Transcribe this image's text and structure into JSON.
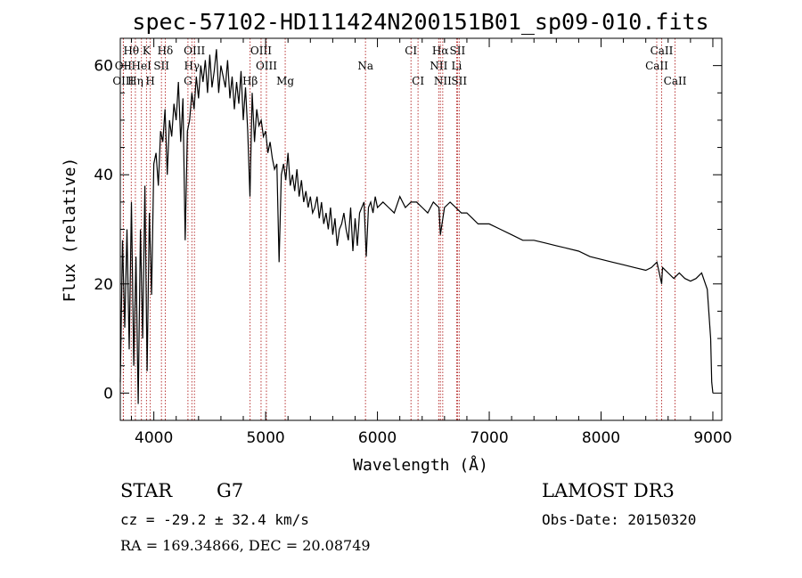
{
  "chart_data": {
    "type": "line",
    "title": "spec-57102-HD111424N200151B01_sp09-010.fits",
    "xlabel": "Wavelength (Å)",
    "ylabel": "Flux (relative)",
    "xlim": [
      3700,
      9080
    ],
    "ylim": [
      -5,
      65
    ],
    "x_ticks": [
      4000,
      5000,
      6000,
      7000,
      8000,
      9000
    ],
    "x_tick_labels": [
      "4000",
      "5000",
      "6000",
      "7000",
      "8000",
      "9000"
    ],
    "y_ticks": [
      0,
      20,
      40,
      60
    ],
    "y_tick_labels": [
      "0",
      "20",
      "40",
      "60"
    ],
    "series": [
      {
        "name": "flux",
        "x": [
          3700,
          3720,
          3740,
          3760,
          3780,
          3800,
          3820,
          3840,
          3860,
          3880,
          3900,
          3920,
          3940,
          3960,
          3980,
          4000,
          4020,
          4040,
          4060,
          4080,
          4100,
          4120,
          4140,
          4160,
          4180,
          4200,
          4220,
          4240,
          4260,
          4280,
          4300,
          4320,
          4340,
          4360,
          4380,
          4400,
          4420,
          4440,
          4460,
          4480,
          4500,
          4520,
          4540,
          4560,
          4580,
          4600,
          4620,
          4640,
          4660,
          4680,
          4700,
          4720,
          4740,
          4760,
          4780,
          4800,
          4820,
          4840,
          4860,
          4880,
          4900,
          4920,
          4940,
          4960,
          4980,
          5000,
          5020,
          5040,
          5060,
          5080,
          5100,
          5120,
          5140,
          5160,
          5180,
          5200,
          5220,
          5240,
          5260,
          5280,
          5300,
          5320,
          5340,
          5360,
          5380,
          5400,
          5420,
          5440,
          5460,
          5480,
          5500,
          5520,
          5540,
          5560,
          5580,
          5600,
          5620,
          5640,
          5660,
          5680,
          5700,
          5720,
          5740,
          5760,
          5780,
          5800,
          5820,
          5840,
          5860,
          5880,
          5900,
          5920,
          5940,
          5960,
          5980,
          6000,
          6050,
          6100,
          6150,
          6200,
          6250,
          6300,
          6350,
          6400,
          6450,
          6500,
          6550,
          6563,
          6600,
          6650,
          6700,
          6750,
          6800,
          6850,
          6900,
          6950,
          7000,
          7100,
          7200,
          7300,
          7400,
          7500,
          7600,
          7700,
          7800,
          7900,
          8000,
          8100,
          8200,
          8300,
          8400,
          8450,
          8500,
          8542,
          8550,
          8600,
          8650,
          8700,
          8750,
          8800,
          8850,
          8900,
          8950,
          8980,
          8990,
          9000
        ],
        "y": [
          2,
          28,
          12,
          30,
          8,
          35,
          5,
          25,
          -2,
          30,
          10,
          38,
          4,
          33,
          18,
          42,
          44,
          38,
          48,
          46,
          52,
          40,
          50,
          47,
          53,
          50,
          57,
          46,
          54,
          28,
          48,
          50,
          55,
          52,
          58,
          54,
          60,
          57,
          61,
          55,
          62,
          56,
          59,
          63,
          55,
          60,
          58,
          56,
          61,
          54,
          58,
          52,
          57,
          53,
          59,
          50,
          56,
          48,
          36,
          55,
          46,
          52,
          49,
          50,
          47,
          48,
          44,
          46,
          43,
          41,
          42,
          24,
          40,
          42,
          39,
          44,
          38,
          40,
          37,
          41,
          36,
          39,
          35,
          37,
          34,
          36,
          33,
          34,
          36,
          32,
          35,
          31,
          33,
          30,
          34,
          29,
          32,
          27,
          30,
          31,
          33,
          30,
          28,
          34,
          26,
          32,
          27,
          33,
          34,
          35,
          25,
          34,
          35,
          33,
          36,
          34,
          35,
          34,
          33,
          36,
          34,
          35,
          35,
          34,
          33,
          35,
          34,
          29,
          34,
          35,
          34,
          33,
          33,
          32,
          31,
          31,
          31,
          30,
          29,
          28,
          28,
          27.5,
          27,
          26.5,
          26,
          25,
          24.5,
          24,
          23.5,
          23,
          22.5,
          23,
          24,
          20,
          23,
          22,
          21,
          22,
          21,
          20.5,
          21,
          22,
          19,
          10,
          2,
          0
        ]
      }
    ],
    "line_markers": [
      {
        "label": "Hθ",
        "x": 3798,
        "row": 0
      },
      {
        "label": "OII",
        "x": 3727,
        "row": 1
      },
      {
        "label": "OIII",
        "x": 3727,
        "row": 2
      },
      {
        "label": "Hη",
        "x": 3835,
        "row": 2
      },
      {
        "label": "HeI",
        "x": 3889,
        "row": 1
      },
      {
        "label": "K",
        "x": 3934,
        "row": 0
      },
      {
        "label": "SII",
        "x": 4068,
        "row": 1
      },
      {
        "label": "H",
        "x": 3968,
        "row": 2
      },
      {
        "label": "Hδ",
        "x": 4102,
        "row": 0
      },
      {
        "label": "OIII",
        "x": 4363,
        "row": 0
      },
      {
        "label": "Hγ",
        "x": 4340,
        "row": 1
      },
      {
        "label": "G",
        "x": 4305,
        "row": 2
      },
      {
        "label": "OIII",
        "x": 4959,
        "row": 0
      },
      {
        "label": "OIII",
        "x": 5007,
        "row": 1
      },
      {
        "label": "Hβ",
        "x": 4861,
        "row": 2
      },
      {
        "label": "Mg",
        "x": 5175,
        "row": 2
      },
      {
        "label": "Na",
        "x": 5893,
        "row": 1
      },
      {
        "label": "CI",
        "x": 6300,
        "row": 0
      },
      {
        "label": "CI",
        "x": 6363,
        "row": 2
      },
      {
        "label": "Hα",
        "x": 6563,
        "row": 0
      },
      {
        "label": "SII",
        "x": 6716,
        "row": 0
      },
      {
        "label": "NII",
        "x": 6548,
        "row": 1
      },
      {
        "label": "Li",
        "x": 6708,
        "row": 1
      },
      {
        "label": "NII",
        "x": 6584,
        "row": 2
      },
      {
        "label": "SII",
        "x": 6731,
        "row": 2
      },
      {
        "label": "CaII",
        "x": 8542,
        "row": 0
      },
      {
        "label": "CaII",
        "x": 8498,
        "row": 1
      },
      {
        "label": "CaII",
        "x": 8662,
        "row": 2
      }
    ]
  },
  "info": {
    "class": "STAR",
    "subclass": "G7",
    "survey": "LAMOST DR3",
    "cz": "cz = -29.2 ± 32.4 km/s",
    "obs_date": "Obs-Date: 20150320",
    "coords": "RA = 169.34866, DEC =  20.08749"
  },
  "colors": {
    "axis": "#000000",
    "spectrum": "#000000",
    "line_marker": "#b22222",
    "background": "#ffffff"
  }
}
